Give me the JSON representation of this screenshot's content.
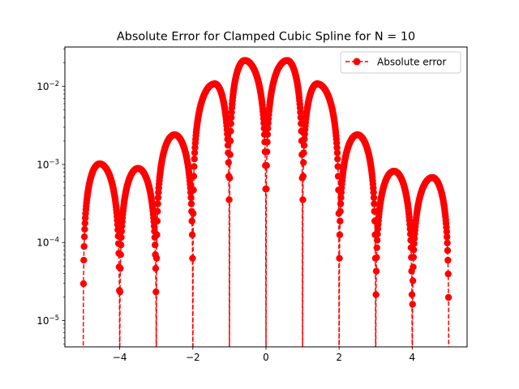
{
  "chart_data": {
    "type": "line",
    "title": "Absolute Error for Clamped Cubic Spline for N = 10",
    "xlabel": "",
    "ylabel": "",
    "xlim": [
      -5.5,
      5.5
    ],
    "ylim": [
      4.6e-06,
      0.032
    ],
    "yscale": "log",
    "grid": false,
    "legend_position": "top-right",
    "x_ticks": [
      -4,
      -2,
      0,
      2,
      4
    ],
    "x_tick_labels": [
      "−4",
      "−2",
      "0",
      "2",
      "4"
    ],
    "y_ticks": [
      1e-05,
      0.0001,
      0.001,
      0.01
    ],
    "y_tick_labels": [
      {
        "base": "10",
        "exp": "−5"
      },
      {
        "base": "10",
        "exp": "−4"
      },
      {
        "base": "10",
        "exp": "−3"
      },
      {
        "base": "10",
        "exp": "−2"
      }
    ],
    "nodes": [
      -5,
      -4,
      -3,
      -2,
      -1,
      0,
      1,
      2,
      3,
      4,
      5
    ],
    "lobe_peaks": [
      {
        "x": -4.55,
        "y": 0.00102
      },
      {
        "x": -3.5,
        "y": 0.00089
      },
      {
        "x": -2.5,
        "y": 0.0024
      },
      {
        "x": -1.4,
        "y": 0.0108
      },
      {
        "x": -0.58,
        "y": 0.0215
      },
      {
        "x": 0.58,
        "y": 0.0215
      },
      {
        "x": 1.4,
        "y": 0.0108
      },
      {
        "x": 2.5,
        "y": 0.0024
      },
      {
        "x": 3.5,
        "y": 0.00082
      },
      {
        "x": 4.55,
        "y": 0.00068
      }
    ],
    "series": [
      {
        "name": "Absolute error",
        "color": "#ff0000",
        "line_style": "dashed",
        "marker": "circle"
      }
    ]
  }
}
